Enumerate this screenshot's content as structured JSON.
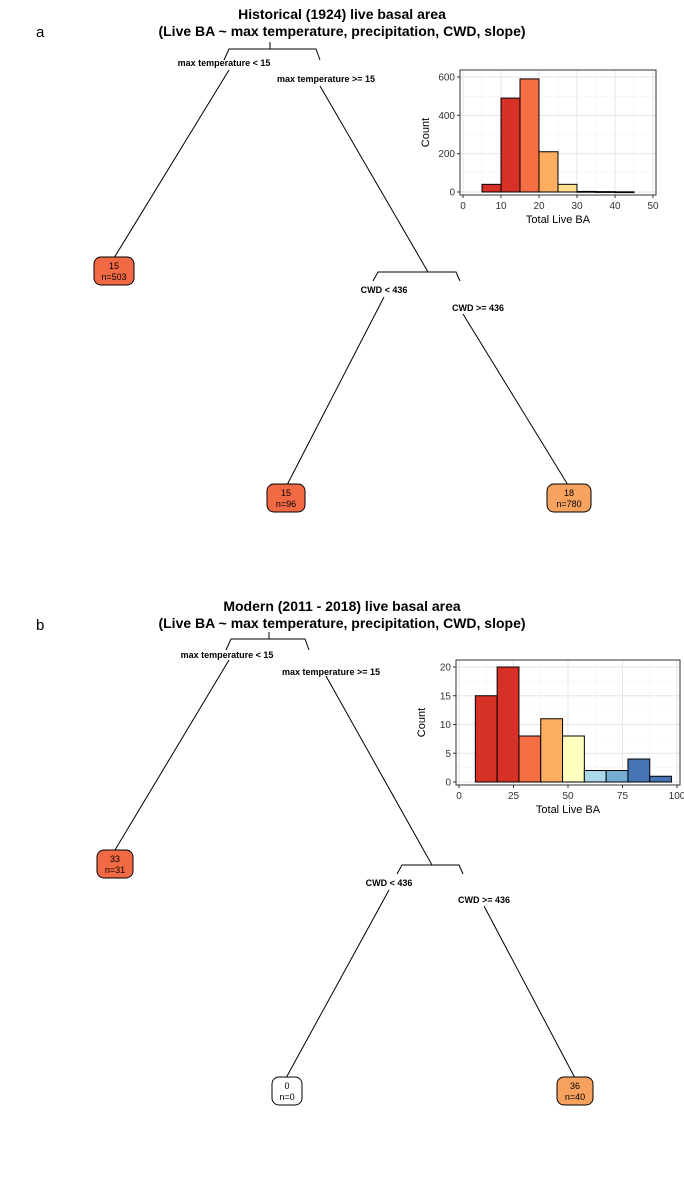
{
  "panels": [
    {
      "letter": "a",
      "title_line1": "Historical (1924) live basal area",
      "title_line2": "(Live BA ~ max temperature, precipitation, CWD, slope)",
      "tree": {
        "split1_left": "max temperature < 15",
        "split1_right": "max temperature >= 15",
        "split2_left": "CWD < 436",
        "split2_right": "CWD >= 436",
        "leaves": [
          {
            "value": "15",
            "n": "n=503",
            "color": "#f26a43"
          },
          {
            "value": "15",
            "n": "n=96",
            "color": "#f26a43"
          },
          {
            "value": "18",
            "n": "n=780",
            "color": "#f7a25e"
          }
        ]
      }
    },
    {
      "letter": "b",
      "title_line1": "Modern (2011 - 2018) live basal area",
      "title_line2": "(Live BA ~ max temperature, precipitation, CWD, slope)",
      "tree": {
        "split1_left": "max temperature < 15",
        "split1_right": "max temperature >= 15",
        "split2_left": "CWD < 436",
        "split2_right": "CWD >= 436",
        "leaves": [
          {
            "value": "33",
            "n": "n=31",
            "color": "#f26a43"
          },
          {
            "value": "0",
            "n": "n=0",
            "color": "#ffffff"
          },
          {
            "value": "36",
            "n": "n=40",
            "color": "#f7a25e"
          }
        ]
      }
    }
  ],
  "chart_data": [
    {
      "type": "bar",
      "panel": "a",
      "xlabel": "Total Live BA",
      "ylabel": "Count",
      "xlim": [
        0,
        50
      ],
      "ylim": [
        0,
        600
      ],
      "xticks": [
        0,
        10,
        20,
        30,
        40,
        50
      ],
      "yticks": [
        0,
        200,
        400,
        600
      ],
      "grid": true,
      "bins": [
        {
          "x0": 5,
          "x1": 10,
          "count": 40,
          "color": "#d73027"
        },
        {
          "x0": 10,
          "x1": 15,
          "count": 490,
          "color": "#d73027"
        },
        {
          "x0": 15,
          "x1": 20,
          "count": 590,
          "color": "#f46d43"
        },
        {
          "x0": 20,
          "x1": 25,
          "count": 210,
          "color": "#fdae61"
        },
        {
          "x0": 25,
          "x1": 30,
          "count": 40,
          "color": "#fee090"
        },
        {
          "x0": 30,
          "x1": 35,
          "count": 3,
          "color": "#ffffbf"
        },
        {
          "x0": 35,
          "x1": 40,
          "count": 2,
          "color": "#e0f3f8"
        },
        {
          "x0": 40,
          "x1": 45,
          "count": 1,
          "color": "#abd9e9"
        }
      ]
    },
    {
      "type": "bar",
      "panel": "b",
      "xlabel": "Total Live BA",
      "ylabel": "Count",
      "xlim": [
        0,
        100
      ],
      "ylim": [
        0,
        20
      ],
      "xticks": [
        0,
        25,
        50,
        75,
        100
      ],
      "yticks": [
        0,
        5,
        10,
        15,
        20
      ],
      "grid": true,
      "bins": [
        {
          "x0": 7.5,
          "x1": 17.5,
          "count": 15,
          "color": "#d73027"
        },
        {
          "x0": 17.5,
          "x1": 27.5,
          "count": 20,
          "color": "#d73027"
        },
        {
          "x0": 27.5,
          "x1": 37.5,
          "count": 8,
          "color": "#f46d43"
        },
        {
          "x0": 37.5,
          "x1": 47.5,
          "count": 11,
          "color": "#fdae61"
        },
        {
          "x0": 47.5,
          "x1": 57.5,
          "count": 8,
          "color": "#ffffbf"
        },
        {
          "x0": 57.5,
          "x1": 67.5,
          "count": 2,
          "color": "#abd9e9"
        },
        {
          "x0": 67.5,
          "x1": 77.5,
          "count": 2,
          "color": "#74add1"
        },
        {
          "x0": 77.5,
          "x1": 87.5,
          "count": 4,
          "color": "#4575b4"
        },
        {
          "x0": 87.5,
          "x1": 97.5,
          "count": 1,
          "color": "#4575b4"
        }
      ]
    }
  ]
}
